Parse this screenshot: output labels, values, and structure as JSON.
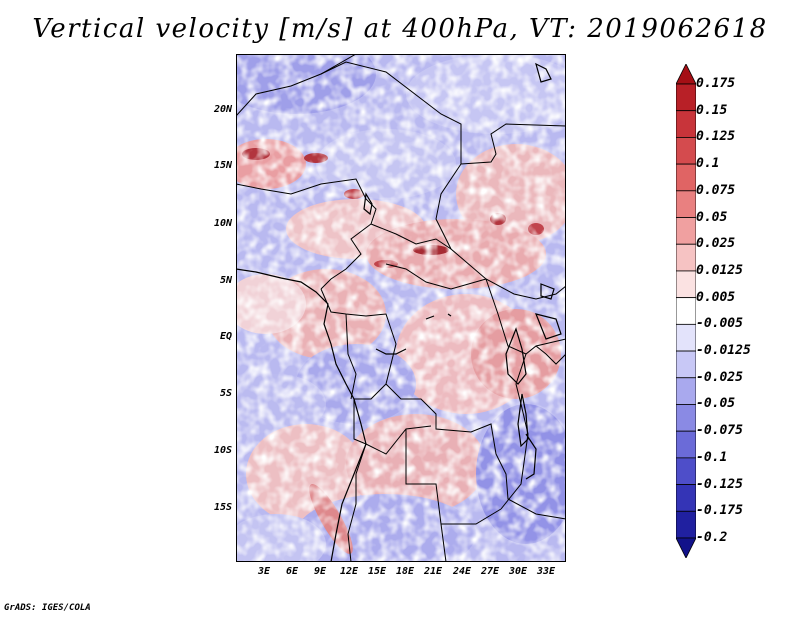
{
  "title": "Vertical velocity [m/s] at 400hPa, VT: 2019062618",
  "footer": "GrADS: IGES/COLA",
  "map": {
    "variable": "Vertical velocity",
    "units": "m/s",
    "level": "400hPa",
    "valid_time": "2019062618",
    "lat_labels": [
      "20N",
      "15N",
      "10N",
      "5N",
      "EQ",
      "5S",
      "10S",
      "15S"
    ],
    "lon_labels": [
      "3E",
      "6E",
      "9E",
      "12E",
      "15E",
      "18E",
      "21E",
      "24E",
      "27E",
      "30E",
      "33E"
    ]
  },
  "colorbar": {
    "labels": [
      "0.175",
      "0.15",
      "0.125",
      "0.1",
      "0.075",
      "0.05",
      "0.025",
      "0.0125",
      "0.005",
      "-0.005",
      "-0.0125",
      "-0.025",
      "-0.05",
      "-0.075",
      "-0.1",
      "-0.125",
      "-0.175",
      "-0.2"
    ],
    "colors": [
      "#a50f15",
      "#b82027",
      "#c8343a",
      "#d44b4e",
      "#e06464",
      "#e98080",
      "#f0a0a0",
      "#f6c3c3",
      "#fbe2e2",
      "#ffffff",
      "#e3e3fb",
      "#c8c8f6",
      "#a9a9ee",
      "#8a8ae4",
      "#6b6bd8",
      "#4e4ec9",
      "#3434b6",
      "#2020a0",
      "#12128a"
    ]
  }
}
